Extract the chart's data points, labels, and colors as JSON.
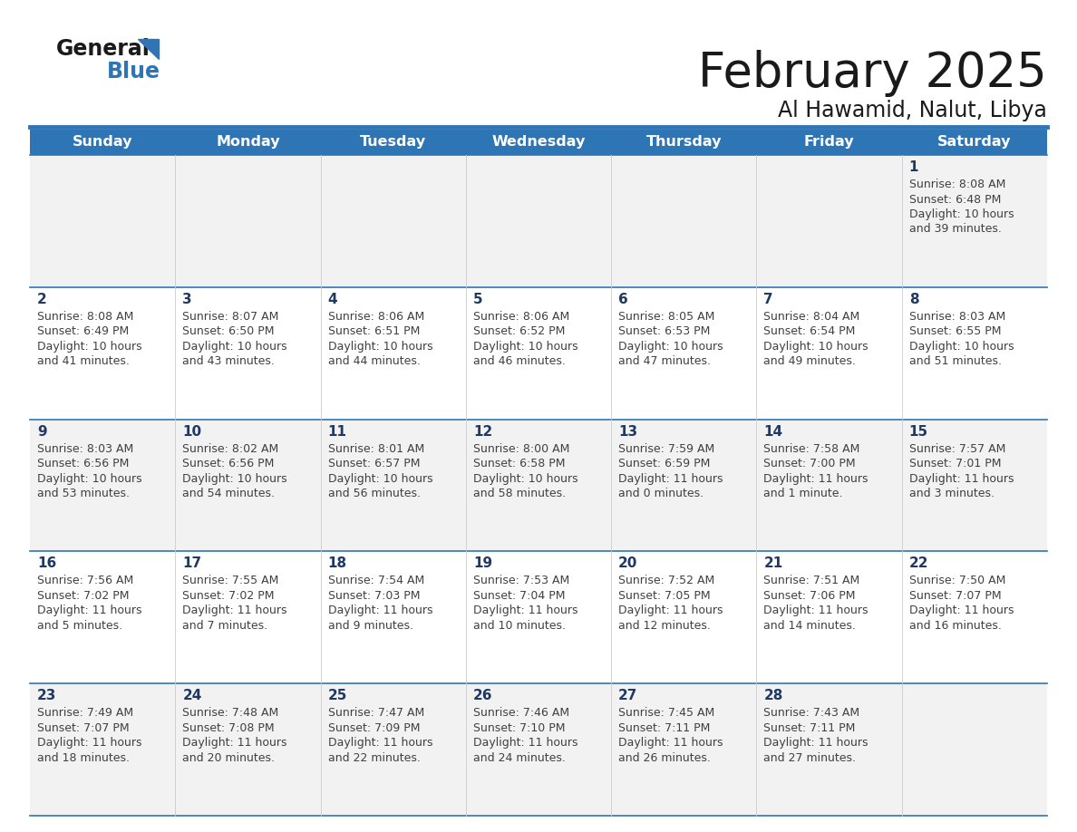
{
  "title": "February 2025",
  "subtitle": "Al Hawamid, Nalut, Libya",
  "days_of_week": [
    "Sunday",
    "Monday",
    "Tuesday",
    "Wednesday",
    "Thursday",
    "Friday",
    "Saturday"
  ],
  "header_bg": "#2E75B6",
  "header_text": "#FFFFFF",
  "row_bg_odd": "#F2F2F2",
  "row_bg_even": "#FFFFFF",
  "cell_border": "#2E75B6",
  "day_num_color": "#1F3864",
  "text_color": "#404040",
  "calendar": [
    [
      {
        "day": null,
        "sunrise": null,
        "sunset": null,
        "daylight": null
      },
      {
        "day": null,
        "sunrise": null,
        "sunset": null,
        "daylight": null
      },
      {
        "day": null,
        "sunrise": null,
        "sunset": null,
        "daylight": null
      },
      {
        "day": null,
        "sunrise": null,
        "sunset": null,
        "daylight": null
      },
      {
        "day": null,
        "sunrise": null,
        "sunset": null,
        "daylight": null
      },
      {
        "day": null,
        "sunrise": null,
        "sunset": null,
        "daylight": null
      },
      {
        "day": 1,
        "sunrise": "8:08 AM",
        "sunset": "6:48 PM",
        "daylight": "10 hours\nand 39 minutes."
      }
    ],
    [
      {
        "day": 2,
        "sunrise": "8:08 AM",
        "sunset": "6:49 PM",
        "daylight": "10 hours\nand 41 minutes."
      },
      {
        "day": 3,
        "sunrise": "8:07 AM",
        "sunset": "6:50 PM",
        "daylight": "10 hours\nand 43 minutes."
      },
      {
        "day": 4,
        "sunrise": "8:06 AM",
        "sunset": "6:51 PM",
        "daylight": "10 hours\nand 44 minutes."
      },
      {
        "day": 5,
        "sunrise": "8:06 AM",
        "sunset": "6:52 PM",
        "daylight": "10 hours\nand 46 minutes."
      },
      {
        "day": 6,
        "sunrise": "8:05 AM",
        "sunset": "6:53 PM",
        "daylight": "10 hours\nand 47 minutes."
      },
      {
        "day": 7,
        "sunrise": "8:04 AM",
        "sunset": "6:54 PM",
        "daylight": "10 hours\nand 49 minutes."
      },
      {
        "day": 8,
        "sunrise": "8:03 AM",
        "sunset": "6:55 PM",
        "daylight": "10 hours\nand 51 minutes."
      }
    ],
    [
      {
        "day": 9,
        "sunrise": "8:03 AM",
        "sunset": "6:56 PM",
        "daylight": "10 hours\nand 53 minutes."
      },
      {
        "day": 10,
        "sunrise": "8:02 AM",
        "sunset": "6:56 PM",
        "daylight": "10 hours\nand 54 minutes."
      },
      {
        "day": 11,
        "sunrise": "8:01 AM",
        "sunset": "6:57 PM",
        "daylight": "10 hours\nand 56 minutes."
      },
      {
        "day": 12,
        "sunrise": "8:00 AM",
        "sunset": "6:58 PM",
        "daylight": "10 hours\nand 58 minutes."
      },
      {
        "day": 13,
        "sunrise": "7:59 AM",
        "sunset": "6:59 PM",
        "daylight": "11 hours\nand 0 minutes."
      },
      {
        "day": 14,
        "sunrise": "7:58 AM",
        "sunset": "7:00 PM",
        "daylight": "11 hours\nand 1 minute."
      },
      {
        "day": 15,
        "sunrise": "7:57 AM",
        "sunset": "7:01 PM",
        "daylight": "11 hours\nand 3 minutes."
      }
    ],
    [
      {
        "day": 16,
        "sunrise": "7:56 AM",
        "sunset": "7:02 PM",
        "daylight": "11 hours\nand 5 minutes."
      },
      {
        "day": 17,
        "sunrise": "7:55 AM",
        "sunset": "7:02 PM",
        "daylight": "11 hours\nand 7 minutes."
      },
      {
        "day": 18,
        "sunrise": "7:54 AM",
        "sunset": "7:03 PM",
        "daylight": "11 hours\nand 9 minutes."
      },
      {
        "day": 19,
        "sunrise": "7:53 AM",
        "sunset": "7:04 PM",
        "daylight": "11 hours\nand 10 minutes."
      },
      {
        "day": 20,
        "sunrise": "7:52 AM",
        "sunset": "7:05 PM",
        "daylight": "11 hours\nand 12 minutes."
      },
      {
        "day": 21,
        "sunrise": "7:51 AM",
        "sunset": "7:06 PM",
        "daylight": "11 hours\nand 14 minutes."
      },
      {
        "day": 22,
        "sunrise": "7:50 AM",
        "sunset": "7:07 PM",
        "daylight": "11 hours\nand 16 minutes."
      }
    ],
    [
      {
        "day": 23,
        "sunrise": "7:49 AM",
        "sunset": "7:07 PM",
        "daylight": "11 hours\nand 18 minutes."
      },
      {
        "day": 24,
        "sunrise": "7:48 AM",
        "sunset": "7:08 PM",
        "daylight": "11 hours\nand 20 minutes."
      },
      {
        "day": 25,
        "sunrise": "7:47 AM",
        "sunset": "7:09 PM",
        "daylight": "11 hours\nand 22 minutes."
      },
      {
        "day": 26,
        "sunrise": "7:46 AM",
        "sunset": "7:10 PM",
        "daylight": "11 hours\nand 24 minutes."
      },
      {
        "day": 27,
        "sunrise": "7:45 AM",
        "sunset": "7:11 PM",
        "daylight": "11 hours\nand 26 minutes."
      },
      {
        "day": 28,
        "sunrise": "7:43 AM",
        "sunset": "7:11 PM",
        "daylight": "11 hours\nand 27 minutes."
      },
      {
        "day": null,
        "sunrise": null,
        "sunset": null,
        "daylight": null
      }
    ]
  ]
}
